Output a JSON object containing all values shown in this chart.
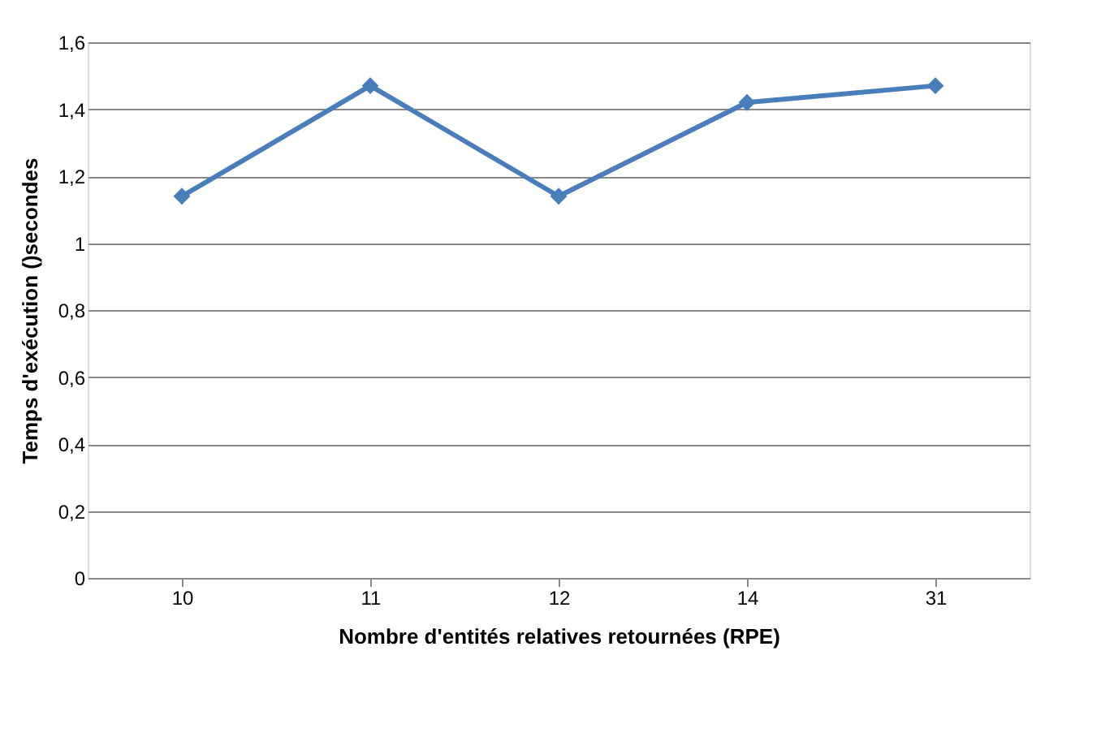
{
  "chart_data": {
    "type": "line",
    "xlabel": "Nombre d'entités relatives retournées (RPE)",
    "ylabel": "Temps d'exécution ()secondes",
    "categories": [
      "10",
      "11",
      "12",
      "14",
      "31"
    ],
    "series": [
      {
        "color": "#4a7ebb",
        "values": [
          1.14,
          1.47,
          1.14,
          1.42,
          1.47
        ]
      }
    ],
    "ylim": [
      0,
      1.6
    ],
    "yticks": [
      0,
      {
        "value": 0.2,
        "label": "0,2"
      },
      {
        "value": 0.4,
        "label": "0,4"
      },
      {
        "value": 0.6,
        "label": "0,6"
      },
      {
        "value": 0.8,
        "label": "0,8"
      },
      1,
      {
        "value": 1.2,
        "label": "1,2"
      },
      {
        "value": 1.4,
        "label": "1,4"
      },
      {
        "value": 1.6,
        "label": "1,6"
      }
    ],
    "grid": "y",
    "marker": "diamond",
    "line_style": "solid"
  }
}
